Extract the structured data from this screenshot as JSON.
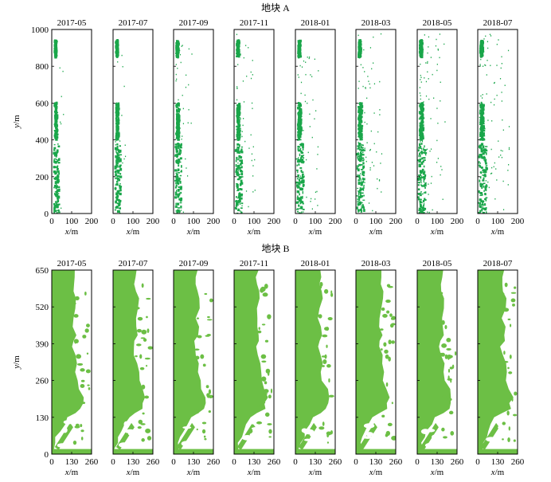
{
  "chart_data": [
    {
      "type": "scatter",
      "title": "地块 A",
      "panels": [
        "2017-05",
        "2017-07",
        "2017-09",
        "2017-11",
        "2018-01",
        "2018-03",
        "2018-05",
        "2018-07"
      ],
      "xlabel": "x/m",
      "ylabel": "y/m",
      "xlim": [
        0,
        200
      ],
      "ylim": [
        0,
        1000
      ],
      "xticks": [
        "0",
        "100",
        "200"
      ],
      "yticks": [
        "0",
        "200",
        "400",
        "600",
        "800",
        "1000"
      ],
      "color": "#1aa64a",
      "bands": [
        {
          "y": [
            850,
            940
          ],
          "x_center": 20,
          "x_width": 10
        },
        {
          "y": [
            400,
            600
          ],
          "x_center": 22,
          "x_width": 14
        },
        {
          "y": [
            0,
            380
          ],
          "x_center": 25,
          "x_width": 30
        }
      ],
      "spread_by_panel": [
        0.2,
        0.3,
        0.55,
        0.7,
        0.8,
        1.0,
        1.1,
        1.35
      ]
    },
    {
      "type": "area",
      "title": "地块 B",
      "panels": [
        "2017-05",
        "2017-07",
        "2017-09",
        "2017-11",
        "2018-01",
        "2018-03",
        "2018-05",
        "2018-07"
      ],
      "xlabel": "x/m",
      "ylabel": "y/m",
      "xlim": [
        0,
        260
      ],
      "ylim": [
        0,
        650
      ],
      "xticks": [
        "0",
        "130",
        "260"
      ],
      "yticks": [
        "0",
        "130",
        "260",
        "390",
        "520",
        "650"
      ],
      "color": "#6cbf45",
      "edge_profile": [
        {
          "y": 650,
          "x": 160
        },
        {
          "y": 600,
          "x": 150
        },
        {
          "y": 550,
          "x": 170
        },
        {
          "y": 480,
          "x": 150
        },
        {
          "y": 420,
          "x": 165
        },
        {
          "y": 380,
          "x": 140
        },
        {
          "y": 320,
          "x": 170
        },
        {
          "y": 260,
          "x": 175
        },
        {
          "y": 200,
          "x": 215
        },
        {
          "y": 160,
          "x": 200
        },
        {
          "y": 130,
          "x": 110
        },
        {
          "y": 80,
          "x": 60
        },
        {
          "y": 40,
          "x": 30
        },
        {
          "y": 0,
          "x": 20
        }
      ]
    }
  ]
}
